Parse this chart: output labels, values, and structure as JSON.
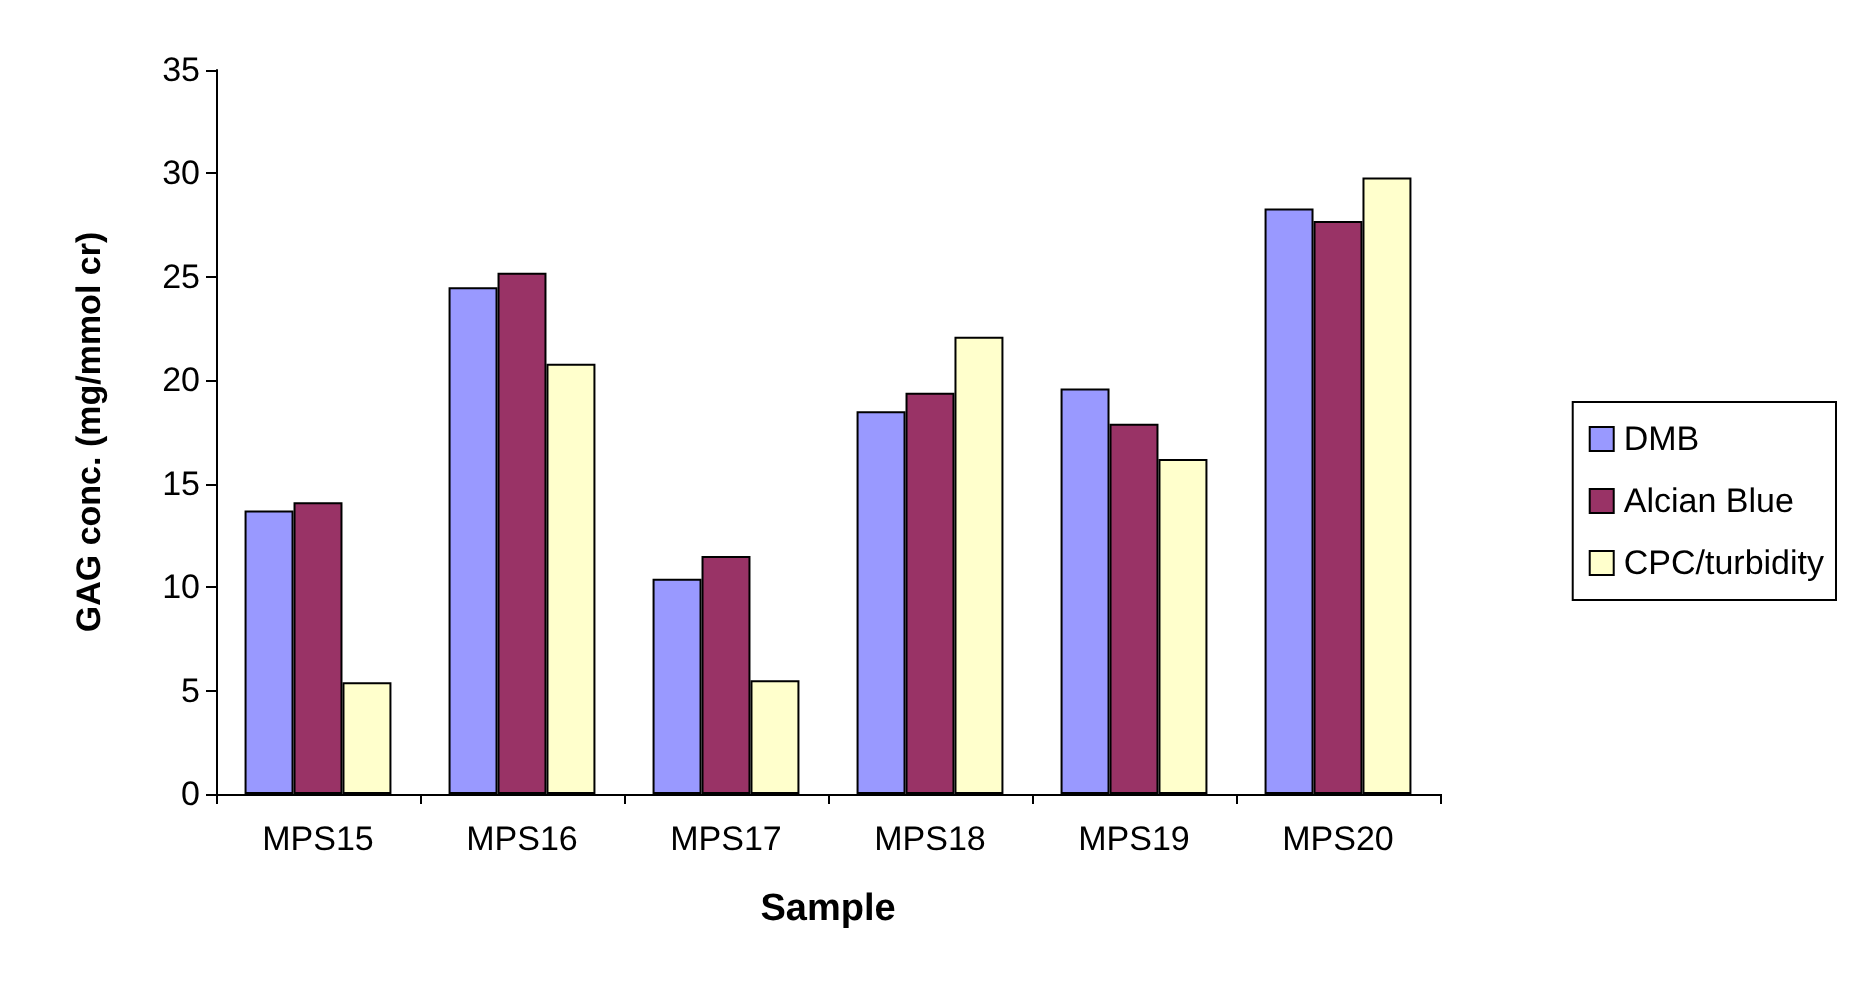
{
  "chart_data": {
    "type": "bar",
    "xlabel": "Sample",
    "ylabel": "GAG conc. (mg/mmol cr)",
    "categories": [
      "MPS15",
      "MPS16",
      "MPS17",
      "MPS18",
      "MPS19",
      "MPS20"
    ],
    "series": [
      {
        "name": "DMB",
        "color": "#9999ff",
        "values": [
          13.7,
          24.5,
          10.4,
          18.5,
          19.6,
          28.3
        ]
      },
      {
        "name": "Alcian Blue",
        "color": "#993366",
        "values": [
          14.1,
          25.2,
          11.5,
          19.4,
          17.9,
          27.7
        ]
      },
      {
        "name": "CPC/turbidity",
        "color": "#ffffcc",
        "values": [
          5.4,
          20.8,
          5.5,
          22.1,
          16.2,
          29.8
        ]
      }
    ],
    "ylim": [
      0,
      35
    ],
    "yticks": [
      0,
      5,
      10,
      15,
      20,
      25,
      30,
      35
    ],
    "grid": false,
    "legend": "right"
  }
}
